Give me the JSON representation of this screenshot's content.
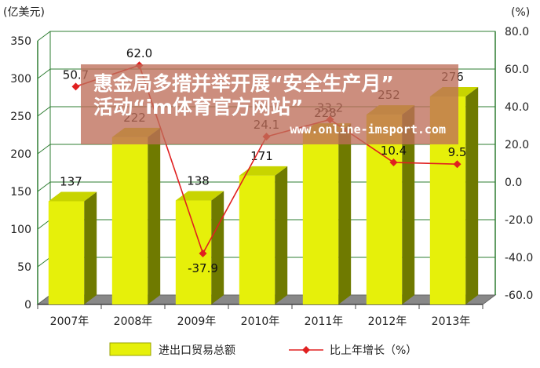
{
  "chart_data": {
    "type": "bar",
    "categories": [
      "2007年",
      "2008年",
      "2009年",
      "2010年",
      "2011年",
      "2012年",
      "2013年"
    ],
    "series": [
      {
        "name": "进出口贸易总额",
        "type": "bar",
        "axis": "left",
        "values": [
          137,
          222,
          138,
          171,
          228,
          252,
          276
        ],
        "labels": [
          "137",
          "222",
          "138",
          "171",
          "228",
          "252",
          "276"
        ]
      },
      {
        "name": "比上年增长（%）",
        "type": "line",
        "axis": "right",
        "values": [
          50.7,
          62.0,
          -37.9,
          24.1,
          33.2,
          10.4,
          9.5
        ],
        "labels": [
          "50.7",
          "62.0",
          "-37.9",
          "24.1",
          "33.2",
          "10.4",
          "9.5"
        ]
      }
    ],
    "ylabel": "(亿美元)",
    "y2label": "(%)",
    "ylim": [
      0,
      350
    ],
    "y2lim": [
      -60,
      80
    ],
    "yticks": [
      "0",
      "50",
      "100",
      "150",
      "200",
      "250",
      "300",
      "350"
    ],
    "y2ticks": [
      "-60.0",
      "-40.0",
      "-20.0",
      "0.0",
      "20.0",
      "40.0",
      "60.0",
      "80.0"
    ],
    "grid": true,
    "legend_position": "bottom",
    "colors": {
      "bar_front": "#e6f00a",
      "bar_side": "#6f7a00",
      "bar_top": "#c8d400",
      "line": "#e02020",
      "grid": "#2e7d32",
      "floor": "#666666"
    }
  },
  "watermark": {
    "line1": "惠金局多措并举开展“安全生产月”",
    "line2": "活动“im体育官方网站”",
    "url": "www.online-imsport.com"
  }
}
